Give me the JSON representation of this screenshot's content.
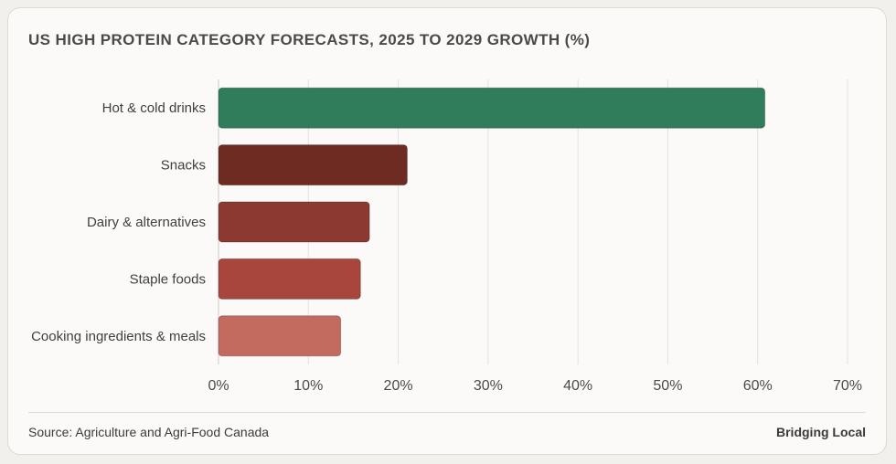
{
  "chart_data": {
    "type": "bar",
    "orientation": "horizontal",
    "title": "US HIGH PROTEIN CATEGORY FORECASTS, 2025 TO 2029 GROWTH (%)",
    "categories": [
      "Hot & cold drinks",
      "Snacks",
      "Dairy & alternatives",
      "Staple foods",
      "Cooking ingredients & meals"
    ],
    "values": [
      60.8,
      21,
      16.8,
      15.8,
      13.6
    ],
    "colors": [
      "#2f7d5b",
      "#6d2b22",
      "#8c3a31",
      "#a8463d",
      "#c46b5f"
    ],
    "xlim": [
      0,
      70
    ],
    "xticks": [
      0,
      10,
      20,
      30,
      40,
      50,
      60,
      70
    ],
    "xtick_labels": [
      "0%",
      "10%",
      "20%",
      "30%",
      "40%",
      "50%",
      "60%",
      "70%"
    ],
    "grid": true,
    "legend": "none"
  },
  "footer": {
    "source": "Source: Agriculture and Agri-Food Canada",
    "brand": "Bridging Local"
  }
}
